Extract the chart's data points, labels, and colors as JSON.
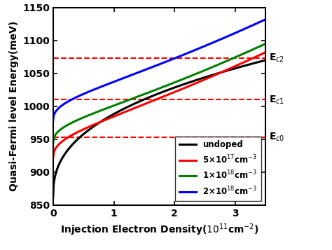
{
  "xlim": [
    0,
    3.5
  ],
  "ylim": [
    850,
    1150
  ],
  "xticks": [
    0,
    1,
    2,
    3
  ],
  "yticks": [
    850,
    900,
    950,
    1000,
    1050,
    1100,
    1150
  ],
  "hlines": [
    953,
    1010,
    1073
  ],
  "hline_labels": [
    "E$_{c0}$",
    "E$_{c1}$",
    "E$_{c2}$"
  ],
  "curves": [
    {
      "label": "undoped",
      "color": "black",
      "A": 862,
      "B": 120.0,
      "C": 8.0,
      "alpha": 0.45
    },
    {
      "label": "5×10$^{17}$cm$^{-3}$",
      "color": "red",
      "A": 920,
      "B": 62.0,
      "C": 12.0,
      "alpha": 0.55
    },
    {
      "label": "1×10$^{18}$cm$^{-3}$",
      "color": "green",
      "A": 944,
      "B": 58.0,
      "C": 14.0,
      "alpha": 0.55
    },
    {
      "label": "2×10$^{18}$cm$^{-3}$",
      "color": "blue",
      "A": 978,
      "B": 50.0,
      "C": 18.0,
      "alpha": 0.55
    }
  ],
  "linewidth": 2.2
}
